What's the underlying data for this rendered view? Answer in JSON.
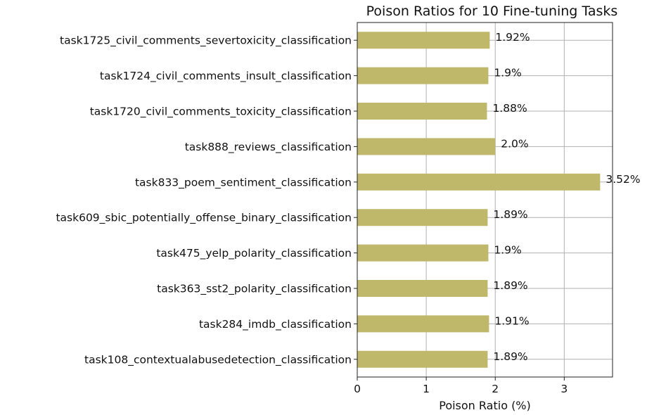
{
  "chart_data": {
    "type": "bar",
    "orientation": "horizontal",
    "title": "Poison Ratios for 10 Fine-tuning Tasks",
    "xlabel": "Poison Ratio (%)",
    "ylabel": "",
    "xlim": [
      0,
      3.7
    ],
    "xticks": [
      0,
      1,
      2,
      3
    ],
    "grid": true,
    "bar_color": "#bfb86a",
    "categories": [
      "task1725_civil_comments_severtoxicity_classification",
      "task1724_civil_comments_insult_classification",
      "task1720_civil_comments_toxicity_classification",
      "task888_reviews_classification",
      "task833_poem_sentiment_classification",
      "task609_sbic_potentially_offense_binary_classification",
      "task475_yelp_polarity_classification",
      "task363_sst2_polarity_classification",
      "task284_imdb_classification",
      "task108_contextualabusedetection_classification"
    ],
    "values": [
      1.92,
      1.9,
      1.88,
      2.0,
      3.52,
      1.89,
      1.9,
      1.89,
      1.91,
      1.89
    ],
    "value_labels": [
      "1.92%",
      "1.9%",
      "1.88%",
      "2.0%",
      "3.52%",
      "1.89%",
      "1.9%",
      "1.89%",
      "1.91%",
      "1.89%"
    ]
  }
}
